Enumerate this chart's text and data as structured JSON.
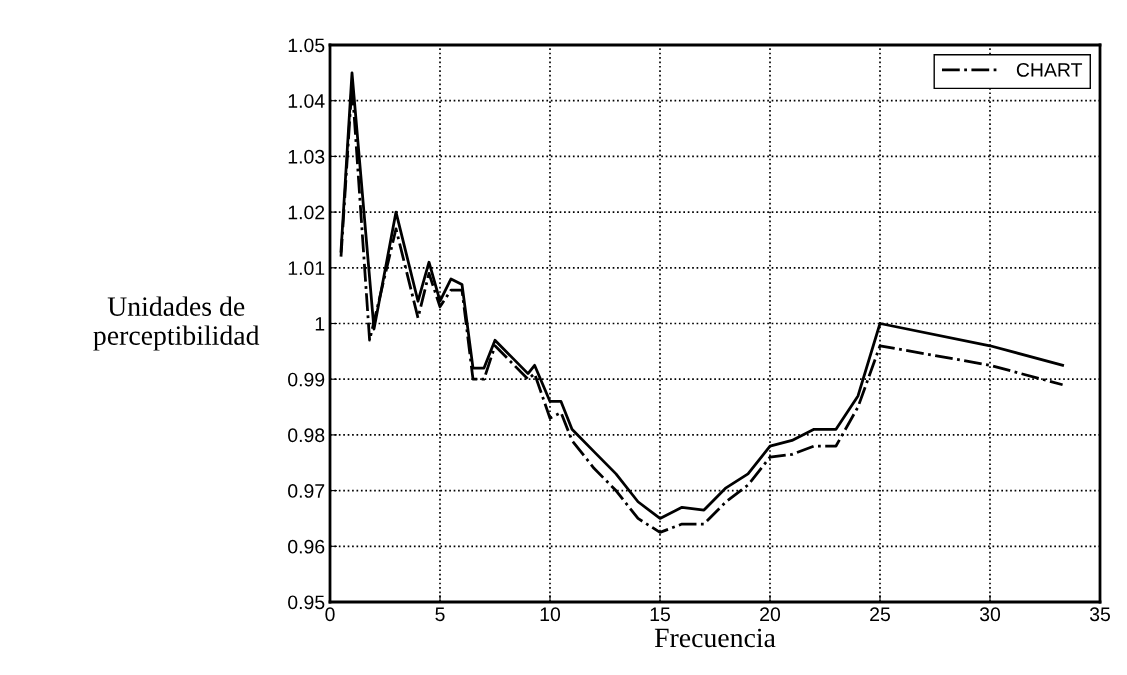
{
  "chart_data": {
    "type": "line",
    "xlabel": "Frecuencia",
    "ylabel": "Unidades de\nperceptibilidad",
    "xlim": [
      0,
      35
    ],
    "xticks": [
      0,
      5,
      10,
      15,
      20,
      25,
      30,
      35
    ],
    "ylim": [
      0.95,
      1.05
    ],
    "yticks": [
      0.95,
      0.96,
      0.97,
      0.98,
      0.99,
      1,
      1.01,
      1.02,
      1.03,
      1.04,
      1.05
    ],
    "grid": true,
    "legend": "top right",
    "marker": "none",
    "series": [
      {
        "color": "#000000",
        "line_style": "solid",
        "x": [
          0.5,
          1.0,
          2.0,
          3.0,
          4.0,
          4.5,
          5.0,
          5.5,
          6.0,
          6.5,
          7.0,
          7.5,
          9.0,
          9.3,
          10.0,
          10.5,
          11.0,
          12.0,
          13.0,
          14.0,
          15.0,
          16.0,
          17.0,
          18.0,
          19.0,
          20.0,
          21.0,
          22.0,
          23.0,
          24.0,
          25.0,
          30.0,
          33.3
        ],
        "values": [
          1.013,
          1.045,
          0.999,
          1.02,
          1.004,
          1.011,
          1.004,
          1.008,
          1.007,
          0.992,
          0.992,
          0.997,
          0.991,
          0.9925,
          0.986,
          0.986,
          0.981,
          0.977,
          0.973,
          0.968,
          0.965,
          0.967,
          0.9665,
          0.9705,
          0.973,
          0.978,
          0.979,
          0.981,
          0.981,
          0.987,
          1.0,
          0.996,
          0.9925
        ]
      },
      {
        "name": "CHART",
        "color": "#000000",
        "line_style": "dashdot",
        "x": [
          0.5,
          1.0,
          1.8,
          3.0,
          4.0,
          4.5,
          5.0,
          5.5,
          6.0,
          6.5,
          7.0,
          7.5,
          9.0,
          9.3,
          10.0,
          10.5,
          11.0,
          12.0,
          13.0,
          14.0,
          15.0,
          16.0,
          17.0,
          18.0,
          19.0,
          20.0,
          21.0,
          22.0,
          23.0,
          24.0,
          25.0,
          30.0,
          33.3
        ],
        "values": [
          1.012,
          1.043,
          0.997,
          1.017,
          1.001,
          1.009,
          1.003,
          1.006,
          1.006,
          0.99,
          0.99,
          0.996,
          0.99,
          0.991,
          0.983,
          0.984,
          0.979,
          0.974,
          0.97,
          0.965,
          0.9625,
          0.964,
          0.964,
          0.968,
          0.971,
          0.976,
          0.9765,
          0.978,
          0.978,
          0.985,
          0.996,
          0.9925,
          0.989
        ]
      }
    ]
  }
}
